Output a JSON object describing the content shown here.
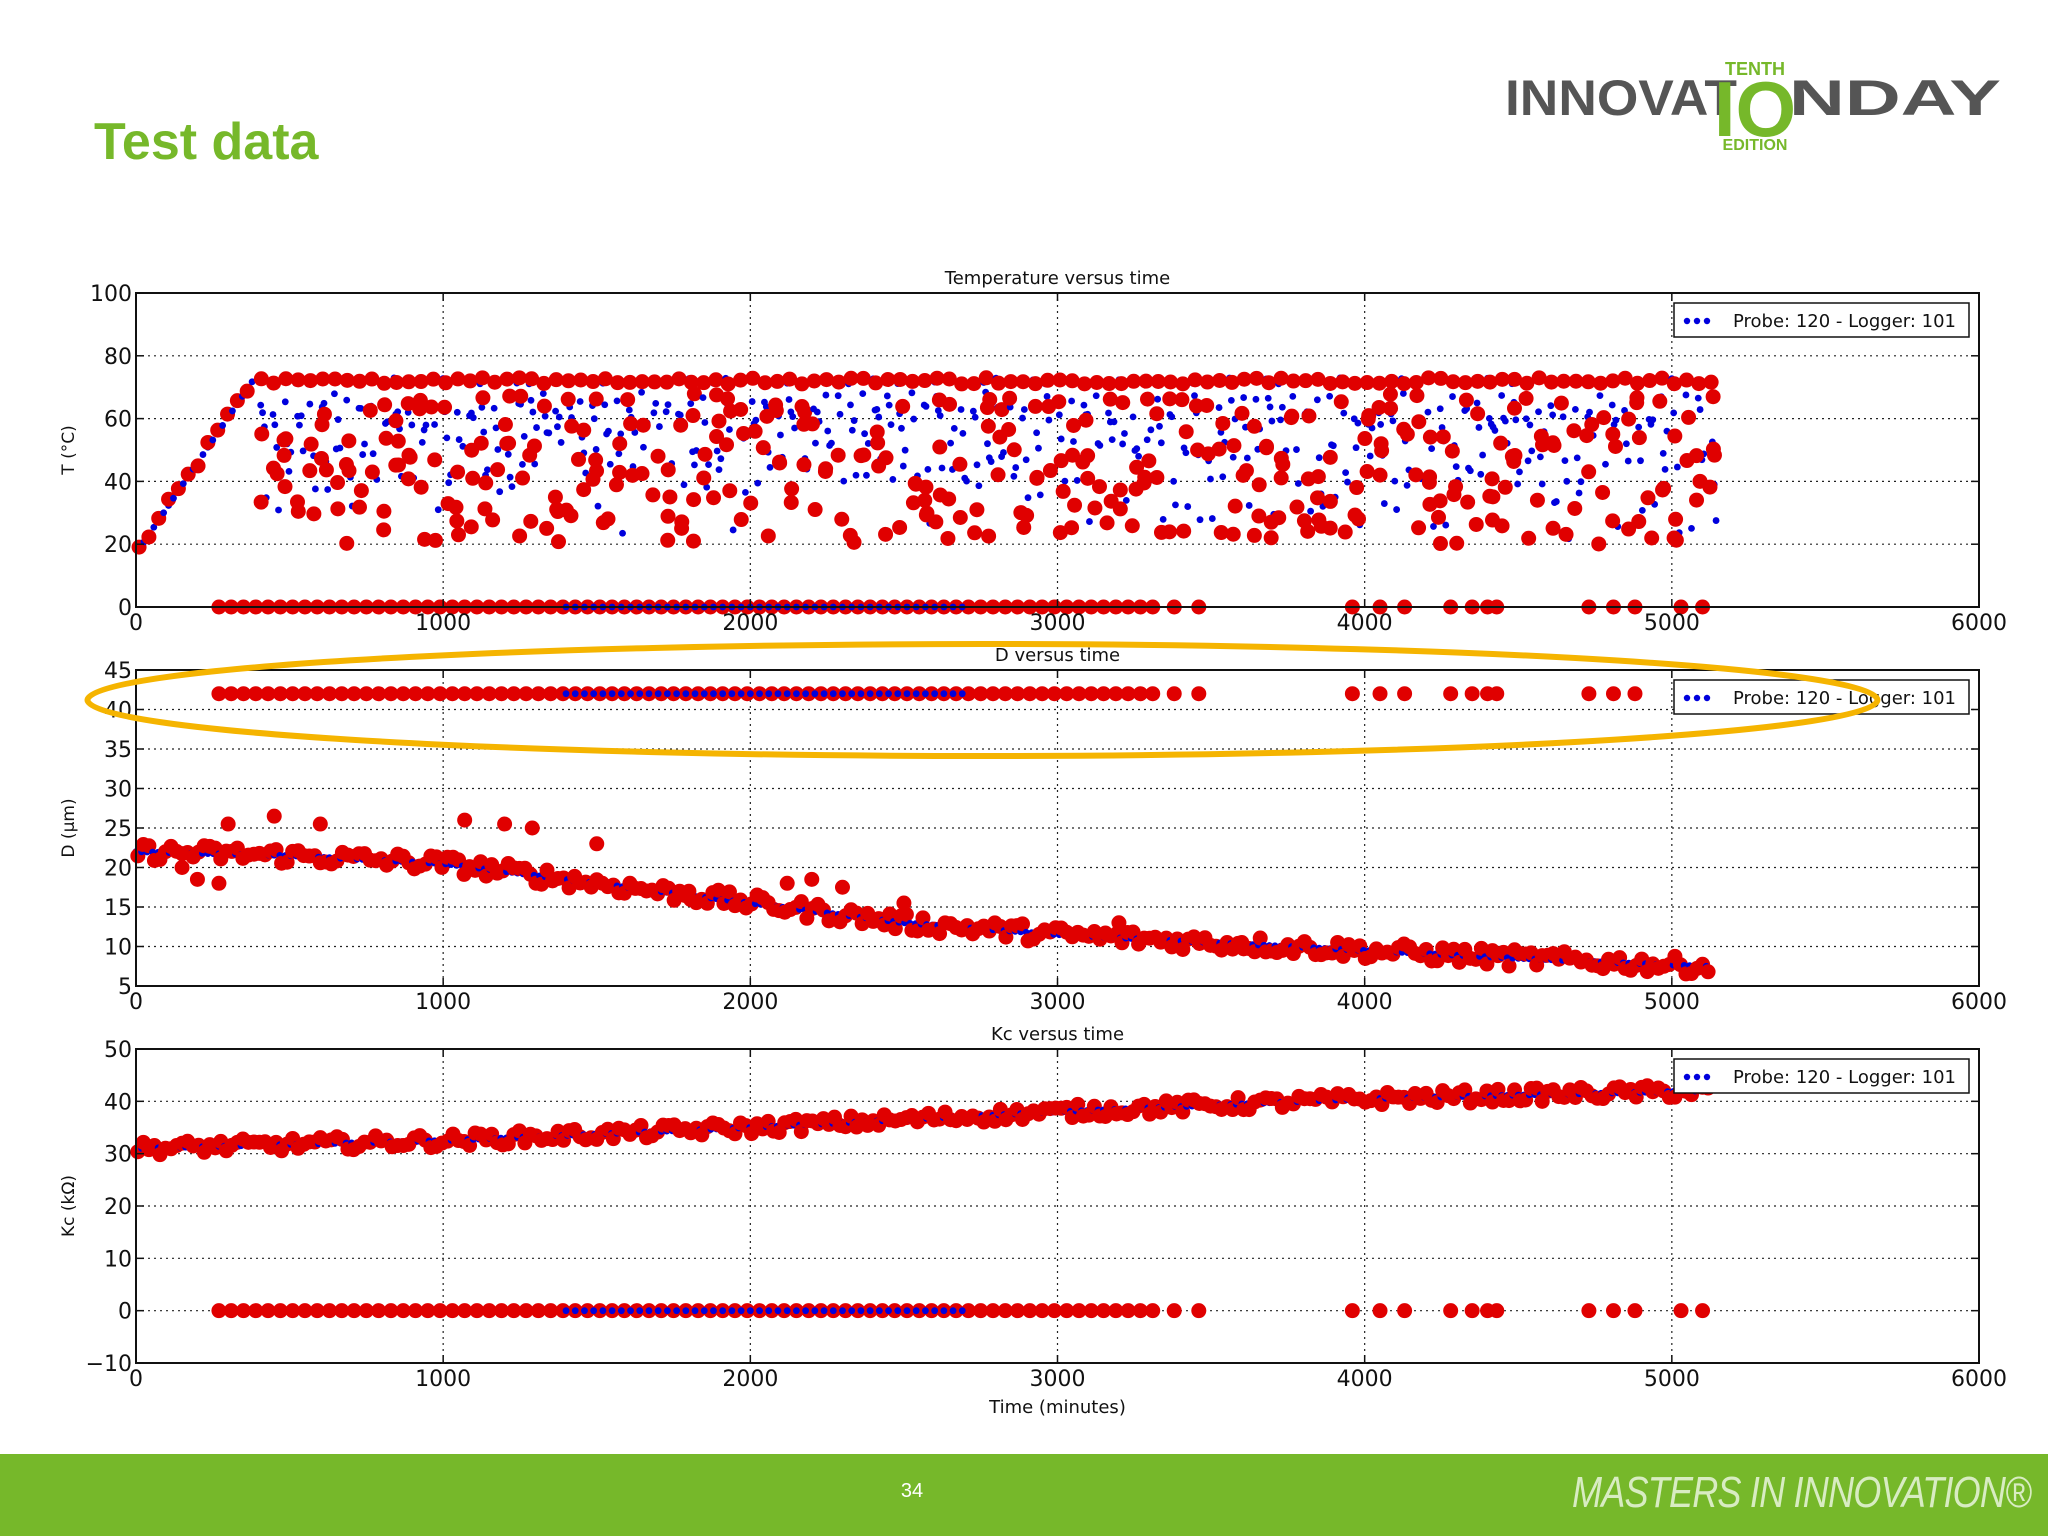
{
  "slide": {
    "title": "Test data",
    "page_number": "34",
    "footer_tagline": "MASTERS IN INNOVATION®",
    "logo": {
      "tenth": "TENTH",
      "innovat": "INNOVAT",
      "io": "IO",
      "nday": "NDAY",
      "edition": "EDITION"
    }
  },
  "colors": {
    "brand_green": "#76b82a",
    "highlight": "#f5b400",
    "logger": "#e00000",
    "probe": "#0000dd"
  },
  "chart_data": [
    {
      "type": "scatter",
      "title": "Temperature versus time",
      "xlabel": "",
      "ylabel": "T (°C)",
      "xlim": [
        0,
        6000
      ],
      "ylim": [
        0,
        100
      ],
      "xticks": [
        0,
        1000,
        2000,
        3000,
        4000,
        5000,
        6000
      ],
      "yticks": [
        0,
        20,
        40,
        60,
        80,
        100
      ],
      "grid": true,
      "legend": {
        "label": "Probe: 120 - Logger: 101",
        "position": "top-right"
      },
      "series": [
        {
          "name": "Probe: 120",
          "description": "probe temperature, rises from ~17 to ~72 by t≈380 then cycles between ~72 and ~20"
        },
        {
          "name": "Logger: 101",
          "description": "logger temperature, scattered 20–72 with many readings at 0"
        }
      ]
    },
    {
      "type": "scatter",
      "title": "D versus time",
      "xlabel": "",
      "ylabel": "D (μm)",
      "xlim": [
        0,
        6000
      ],
      "ylim": [
        5,
        45
      ],
      "xticks": [
        0,
        1000,
        2000,
        3000,
        4000,
        5000,
        6000
      ],
      "yticks": [
        5,
        10,
        15,
        20,
        25,
        30,
        35,
        40,
        45
      ],
      "grid": true,
      "legend": {
        "label": "Probe: 120 - Logger: 101",
        "position": "top-right"
      },
      "highlight": "ellipse around the row of readings at D≈42",
      "trend": [
        [
          0,
          22
        ],
        [
          500,
          21.5
        ],
        [
          1000,
          20.5
        ],
        [
          1500,
          18
        ],
        [
          2000,
          15.5
        ],
        [
          2500,
          13
        ],
        [
          3000,
          11.5
        ],
        [
          3500,
          10.5
        ],
        [
          4000,
          9.5
        ],
        [
          4500,
          8.5
        ],
        [
          5100,
          7.5
        ]
      ]
    },
    {
      "type": "scatter",
      "title": "Kc versus time",
      "xlabel": "Time (minutes)",
      "ylabel": "Kc (kΩ)",
      "xlim": [
        0,
        6000
      ],
      "ylim": [
        -10,
        50
      ],
      "xticks": [
        0,
        1000,
        2000,
        3000,
        4000,
        5000,
        6000
      ],
      "yticks": [
        -10,
        0,
        10,
        20,
        30,
        40,
        50
      ],
      "grid": true,
      "legend": {
        "label": "Probe: 120 - Logger: 101",
        "position": "top-right"
      },
      "trend": [
        [
          0,
          31
        ],
        [
          1000,
          32.5
        ],
        [
          2000,
          35
        ],
        [
          3000,
          38
        ],
        [
          4000,
          40.5
        ],
        [
          5100,
          42
        ]
      ]
    }
  ]
}
